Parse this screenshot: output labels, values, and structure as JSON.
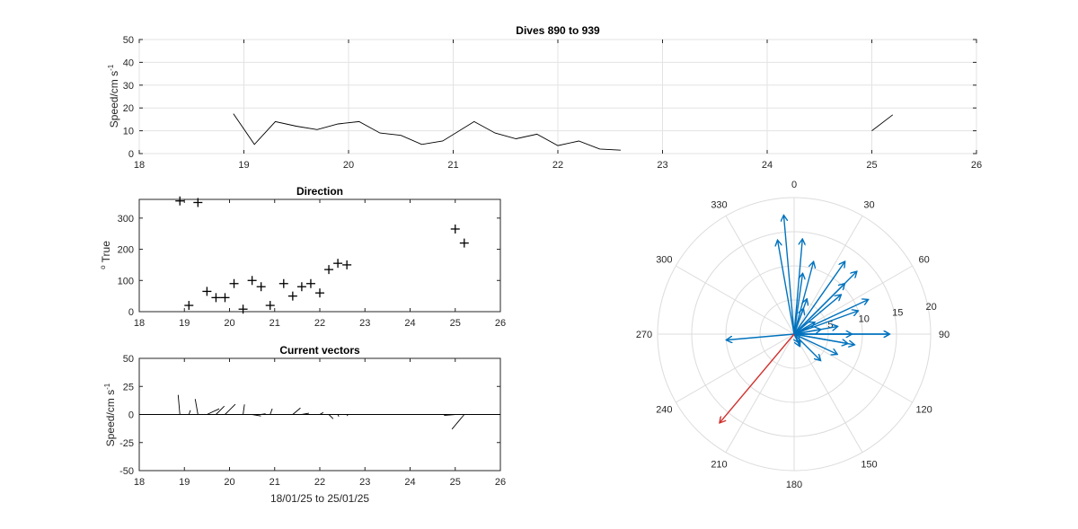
{
  "figure": {
    "speed": {
      "title": "Dives 890 to 939",
      "ylabel": "Speed/cm s",
      "ylabel_sup": "-1",
      "xlim": [
        18,
        26
      ],
      "ylim": [
        0,
        50
      ],
      "xticks": [
        "18",
        "19",
        "20",
        "21",
        "22",
        "23",
        "24",
        "25",
        "26"
      ],
      "yticks": [
        "0",
        "10",
        "20",
        "30",
        "40",
        "50"
      ]
    },
    "direction": {
      "title": "Direction",
      "ylabel_sup": "o",
      "ylabel": " True",
      "xlim": [
        18,
        26
      ],
      "ylim": [
        0,
        360
      ],
      "xticks": [
        "18",
        "19",
        "20",
        "21",
        "22",
        "23",
        "24",
        "25",
        "26"
      ],
      "yticks": [
        "0",
        "100",
        "200",
        "300"
      ]
    },
    "vectors": {
      "title": "Current vectors",
      "ylabel": "Speed/cm s",
      "ylabel_sup": "-1",
      "xlabel": "18/01/25 to 25/01/25",
      "xlim": [
        18,
        26
      ],
      "ylim": [
        -50,
        50
      ],
      "xticks": [
        "18",
        "19",
        "20",
        "21",
        "22",
        "23",
        "24",
        "25",
        "26"
      ],
      "yticks": [
        "-50",
        "-25",
        "0",
        "25",
        "50"
      ]
    },
    "polar": {
      "angle_labels": [
        "0",
        "30",
        "60",
        "90",
        "120",
        "150",
        "180",
        "210",
        "240",
        "270",
        "300",
        "330"
      ],
      "radius_labels": [
        "5",
        "10",
        "15",
        "20"
      ],
      "rmax": 20
    }
  },
  "chart_data": [
    {
      "type": "line",
      "title": "Dives 890 to 939",
      "xlabel": "",
      "ylabel": "Speed/cm s-1",
      "xlim": [
        18,
        26
      ],
      "ylim": [
        0,
        50
      ],
      "grid": true,
      "segments": [
        {
          "x": [
            18.9,
            19.1,
            19.3,
            19.5,
            19.7,
            19.9,
            20.1,
            20.3,
            20.5,
            20.7,
            20.9,
            21.2,
            21.4,
            21.6,
            21.8,
            22.0,
            22.2,
            22.4,
            22.6
          ],
          "y": [
            17.5,
            4,
            14,
            12,
            10.5,
            13,
            14,
            9,
            8,
            4,
            5.5,
            14,
            9,
            6.5,
            8.5,
            3.5,
            5.5,
            2,
            1.5
          ]
        },
        {
          "x": [
            25.0,
            25.2
          ],
          "y": [
            10,
            17
          ]
        }
      ]
    },
    {
      "type": "scatter",
      "title": "Direction",
      "xlabel": "",
      "ylabel": "o True",
      "xlim": [
        18,
        26
      ],
      "ylim": [
        0,
        360
      ],
      "grid": false,
      "marker": "+",
      "x": [
        18.9,
        19.1,
        19.3,
        19.5,
        19.7,
        19.9,
        20.1,
        20.3,
        20.5,
        20.7,
        20.9,
        21.2,
        21.4,
        21.6,
        21.8,
        22.0,
        22.2,
        22.4,
        22.6,
        25.0,
        25.2
      ],
      "y": [
        355,
        20,
        350,
        65,
        45,
        45,
        90,
        8,
        100,
        80,
        20,
        90,
        50,
        80,
        90,
        60,
        135,
        155,
        150,
        265,
        220
      ]
    },
    {
      "type": "vector",
      "title": "Current vectors",
      "xlabel": "18/01/25 to 25/01/25",
      "ylabel": "Speed/cm s-1",
      "xlim": [
        18,
        26
      ],
      "ylim": [
        -50,
        50
      ],
      "grid": false,
      "x": [
        18.9,
        19.1,
        19.3,
        19.5,
        19.7,
        19.9,
        20.1,
        20.3,
        20.5,
        20.7,
        20.9,
        21.2,
        21.4,
        21.6,
        21.8,
        22.0,
        22.2,
        22.4,
        22.6,
        25.0,
        25.2
      ],
      "direction_deg": [
        355,
        20,
        350,
        65,
        45,
        45,
        90,
        8,
        100,
        80,
        20,
        90,
        50,
        80,
        90,
        60,
        135,
        155,
        150,
        265,
        220
      ],
      "speed": [
        17.5,
        4,
        14,
        12,
        10.5,
        13,
        14,
        9,
        8,
        4,
        5.5,
        14,
        9,
        6.5,
        8.5,
        3.5,
        5.5,
        2,
        1.5,
        10,
        17
      ]
    },
    {
      "type": "compass",
      "title": "",
      "rlim": [
        0,
        20
      ],
      "series": [
        {
          "color": "#0072bd",
          "direction_deg": [
            355,
            20,
            350,
            65,
            45,
            45,
            90,
            8,
            100,
            80,
            20,
            90,
            50,
            80,
            90,
            60,
            135,
            155,
            150,
            265,
            5,
            15,
            35,
            70,
            115,
            100
          ],
          "speed": [
            17.5,
            4,
            14,
            12,
            10.5,
            13,
            14,
            9,
            8,
            4,
            5.5,
            14,
            9,
            6.5,
            8.5,
            3.5,
            5.5,
            2,
            1.5,
            10,
            14,
            11,
            13,
            10,
            7,
            9
          ]
        },
        {
          "color": "#d0302c",
          "direction_deg": [
            220
          ],
          "speed": [
            17
          ]
        }
      ]
    }
  ]
}
